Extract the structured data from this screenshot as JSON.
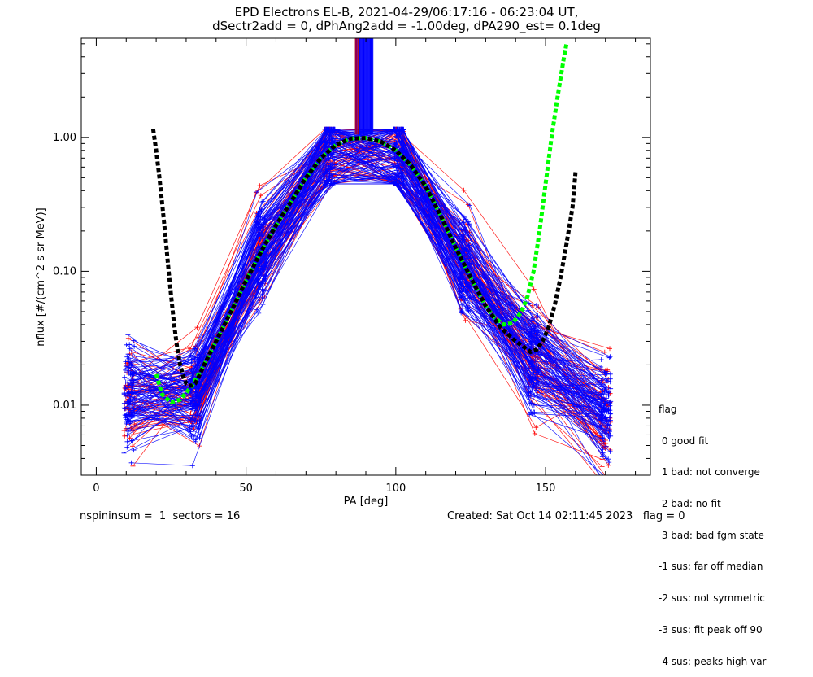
{
  "header": {
    "title_line1": "EPD Electrons EL-B, 2021-04-29/06:17:16 - 06:23:04 UT,",
    "title_line2": "dSectr2add = 0, dPhAng2add = -1.00deg, dPA290_est=   0.1deg"
  },
  "legend": {
    "heading": "flag",
    "items": [
      " 0 good fit",
      " 1 bad: not converge",
      " 2 bad: no fit",
      " 3 bad: bad fgm state",
      "-1 sus: far off median",
      "-2 sus: not symmetric",
      "-3 sus: fit peak off 90",
      "-4 sus: peaks high var"
    ]
  },
  "footer": {
    "left": "nspininsum =  1  sectors = 16",
    "right": "Created: Sat Oct 14 02:11:45 2023   flag = 0"
  },
  "colors": {
    "trace_blue": "#0000ff",
    "trace_red": "#ff0000",
    "fit_green": "#00ff00",
    "fit_black": "#000000"
  },
  "chart_data": {
    "type": "line",
    "xlabel": "PA [deg]",
    "ylabel": "nflux [#/(cm^2 s sr MeV)]",
    "x_scale": "linear",
    "y_scale": "log",
    "xlim": [
      -5,
      185
    ],
    "ylim": [
      0.003,
      5.5
    ],
    "xticks": [
      0,
      50,
      100,
      150
    ],
    "xtick_labels": [
      "0",
      "50",
      "100",
      "150"
    ],
    "yticks": [
      0.01,
      0.1,
      1.0
    ],
    "ytick_labels": [
      "0.01",
      "0.10",
      "1.00"
    ],
    "grid": false,
    "series": [
      {
        "color": "#00ff00",
        "style": "dashed",
        "x": [
          20,
          22,
          25,
          28,
          32,
          36,
          40,
          45,
          50,
          55,
          60,
          65,
          70,
          75,
          80,
          85,
          90,
          95,
          100,
          105,
          110,
          115,
          120,
          125,
          130,
          133,
          136,
          139,
          142,
          144,
          146,
          148,
          150,
          152,
          154,
          156,
          157
        ],
        "y": [
          0.017,
          0.012,
          0.0105,
          0.011,
          0.014,
          0.02,
          0.03,
          0.05,
          0.085,
          0.14,
          0.22,
          0.33,
          0.5,
          0.7,
          0.88,
          0.98,
          0.99,
          0.93,
          0.8,
          0.62,
          0.43,
          0.26,
          0.15,
          0.09,
          0.055,
          0.045,
          0.04,
          0.041,
          0.05,
          0.065,
          0.1,
          0.2,
          0.45,
          1.0,
          2.0,
          3.8,
          5.0
        ]
      },
      {
        "color": "#000000",
        "style": "dashed",
        "x": [
          19,
          20,
          21,
          22,
          23,
          24,
          25,
          26,
          27,
          28,
          29,
          30,
          31,
          32,
          33,
          34,
          36,
          40,
          45,
          50,
          55,
          60,
          65,
          70,
          75,
          80,
          85,
          90,
          95,
          100,
          105,
          110,
          115,
          120,
          125,
          130,
          135,
          140,
          143,
          145,
          147,
          149,
          151,
          153,
          155,
          157,
          159,
          160
        ],
        "y": [
          1.15,
          0.8,
          0.52,
          0.32,
          0.19,
          0.11,
          0.065,
          0.04,
          0.027,
          0.02,
          0.0165,
          0.0145,
          0.014,
          0.014,
          0.0145,
          0.016,
          0.02,
          0.03,
          0.05,
          0.085,
          0.14,
          0.22,
          0.33,
          0.5,
          0.7,
          0.88,
          0.98,
          0.99,
          0.93,
          0.8,
          0.62,
          0.43,
          0.26,
          0.15,
          0.09,
          0.055,
          0.038,
          0.03,
          0.027,
          0.025,
          0.026,
          0.03,
          0.038,
          0.055,
          0.09,
          0.16,
          0.3,
          0.55
        ]
      }
    ]
  }
}
